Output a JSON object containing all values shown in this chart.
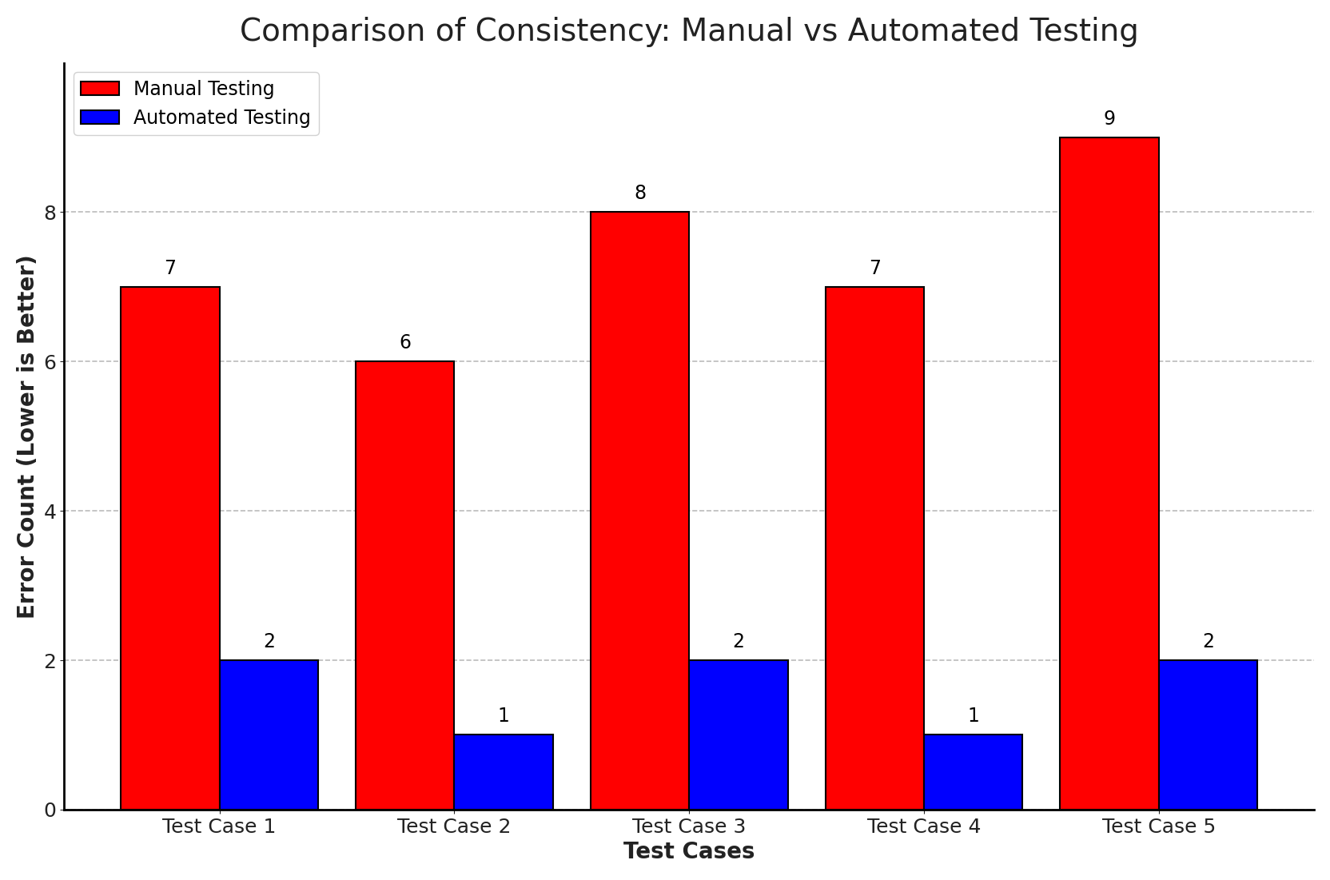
{
  "title": "Comparison of Consistency: Manual vs Automated Testing",
  "xlabel": "Test Cases",
  "ylabel": "Error Count (Lower is Better)",
  "categories": [
    "Test Case 1",
    "Test Case 2",
    "Test Case 3",
    "Test Case 4",
    "Test Case 5"
  ],
  "manual_values": [
    7,
    6,
    8,
    7,
    9
  ],
  "automated_values": [
    2,
    1,
    2,
    1,
    2
  ],
  "manual_color": "#ff0000",
  "automated_color": "#0000ff",
  "bar_edge_color": "#000000",
  "ylim": [
    0,
    10
  ],
  "yticks": [
    0,
    2,
    4,
    6,
    8
  ],
  "legend_labels": [
    "Manual Testing",
    "Automated Testing"
  ],
  "title_fontsize": 28,
  "axis_label_fontsize": 20,
  "tick_fontsize": 18,
  "annotation_fontsize": 17,
  "legend_fontsize": 17,
  "bar_width": 0.42,
  "grid_color": "#aaaaaa",
  "grid_style": "--",
  "grid_alpha": 0.8,
  "background_color": "#ffffff",
  "spine_color": "#000000",
  "title_color": "#222222",
  "label_color": "#222222"
}
